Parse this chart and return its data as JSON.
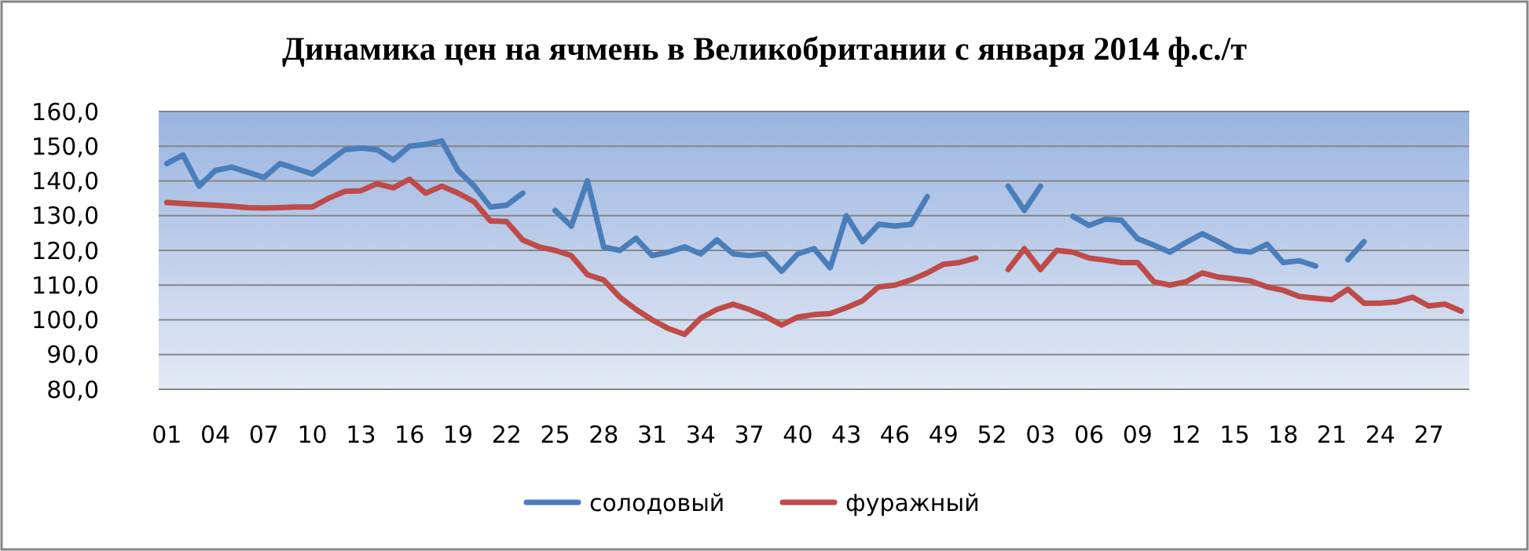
{
  "chart_data": {
    "type": "line",
    "title": "Динамика цен на ячмень в Великобритании с января 2014 ф.с./т",
    "categories": [
      "01",
      null,
      null,
      "04",
      null,
      null,
      "07",
      null,
      null,
      "10",
      null,
      null,
      "13",
      null,
      null,
      "16",
      null,
      null,
      "19",
      null,
      null,
      "22",
      null,
      null,
      "25",
      null,
      null,
      "28",
      null,
      null,
      "31",
      null,
      null,
      "34",
      null,
      null,
      "37",
      null,
      null,
      "40",
      null,
      null,
      "43",
      null,
      null,
      "46",
      null,
      null,
      "49",
      null,
      null,
      "52",
      null,
      null,
      "03",
      null,
      null,
      "06",
      null,
      null,
      "09",
      null,
      null,
      "12",
      null,
      null,
      "15",
      null,
      null,
      "18",
      null,
      null,
      "21",
      null,
      null,
      "24",
      null,
      null,
      "27",
      null,
      null
    ],
    "series": [
      {
        "name": "солодовый",
        "color": "#4a7ebb",
        "values": [
          145,
          147.5,
          138.5,
          143,
          144,
          142.5,
          141,
          145,
          143.5,
          142,
          145.5,
          149,
          149.5,
          149,
          146,
          150,
          150.5,
          151.5,
          143,
          138.5,
          132.5,
          133,
          136.5,
          null,
          131.5,
          127,
          140,
          121,
          120,
          123.5,
          118.5,
          119.5,
          121,
          119,
          123,
          119,
          118.5,
          119,
          114,
          119,
          120.5,
          115,
          130,
          122.5,
          127.5,
          127,
          127.5,
          135.5,
          null,
          null,
          null,
          null,
          138.5,
          131.5,
          138.5,
          null,
          129.8,
          127.2,
          129,
          128.7,
          123.4,
          121.5,
          119.5,
          122.3,
          124.8,
          122.5,
          120,
          119.5,
          121.8,
          116.5,
          117,
          115.5,
          null,
          117.3,
          122.5,
          null,
          null,
          null,
          null,
          null,
          null
        ]
      },
      {
        "name": "фуражный",
        "color": "#be4b48",
        "values": [
          133.8,
          133.5,
          133.2,
          133,
          132.7,
          132.3,
          132.2,
          132.3,
          132.5,
          132.5,
          135,
          137,
          137.2,
          139.2,
          138,
          140.5,
          136.5,
          138.5,
          136.5,
          134,
          128.5,
          128.3,
          123,
          121,
          120,
          118.5,
          113,
          111.5,
          106.5,
          103,
          100,
          97.5,
          95.8,
          100.5,
          103,
          104.5,
          103,
          101,
          98.5,
          100.8,
          101.5,
          101.8,
          103.5,
          105.5,
          109.5,
          110,
          111.5,
          113.5,
          116,
          116.5,
          117.8,
          null,
          114.5,
          120.5,
          114.5,
          120,
          119.5,
          117.8,
          117.2,
          116.5,
          116.5,
          111,
          110,
          111,
          113.5,
          112.3,
          111.8,
          111.2,
          109.5,
          108.5,
          106.7,
          106.2,
          105.8,
          108.8,
          104.8,
          104.8,
          105.2,
          106.5,
          104,
          104.5,
          102.5
        ]
      }
    ],
    "ylim": [
      80,
      160
    ],
    "yticks": [
      {
        "value": 80,
        "label": "80,0"
      },
      {
        "value": 90,
        "label": "90,0"
      },
      {
        "value": 100,
        "label": "100,0"
      },
      {
        "value": 110,
        "label": "110,0"
      },
      {
        "value": 120,
        "label": "120,0"
      },
      {
        "value": 130,
        "label": "130,0"
      },
      {
        "value": 140,
        "label": "140,0"
      },
      {
        "value": 150,
        "label": "150,0"
      },
      {
        "value": 160,
        "label": "160,0"
      }
    ],
    "grid": "y",
    "legend": "bottom",
    "marker": "none",
    "line_style": "solid"
  }
}
